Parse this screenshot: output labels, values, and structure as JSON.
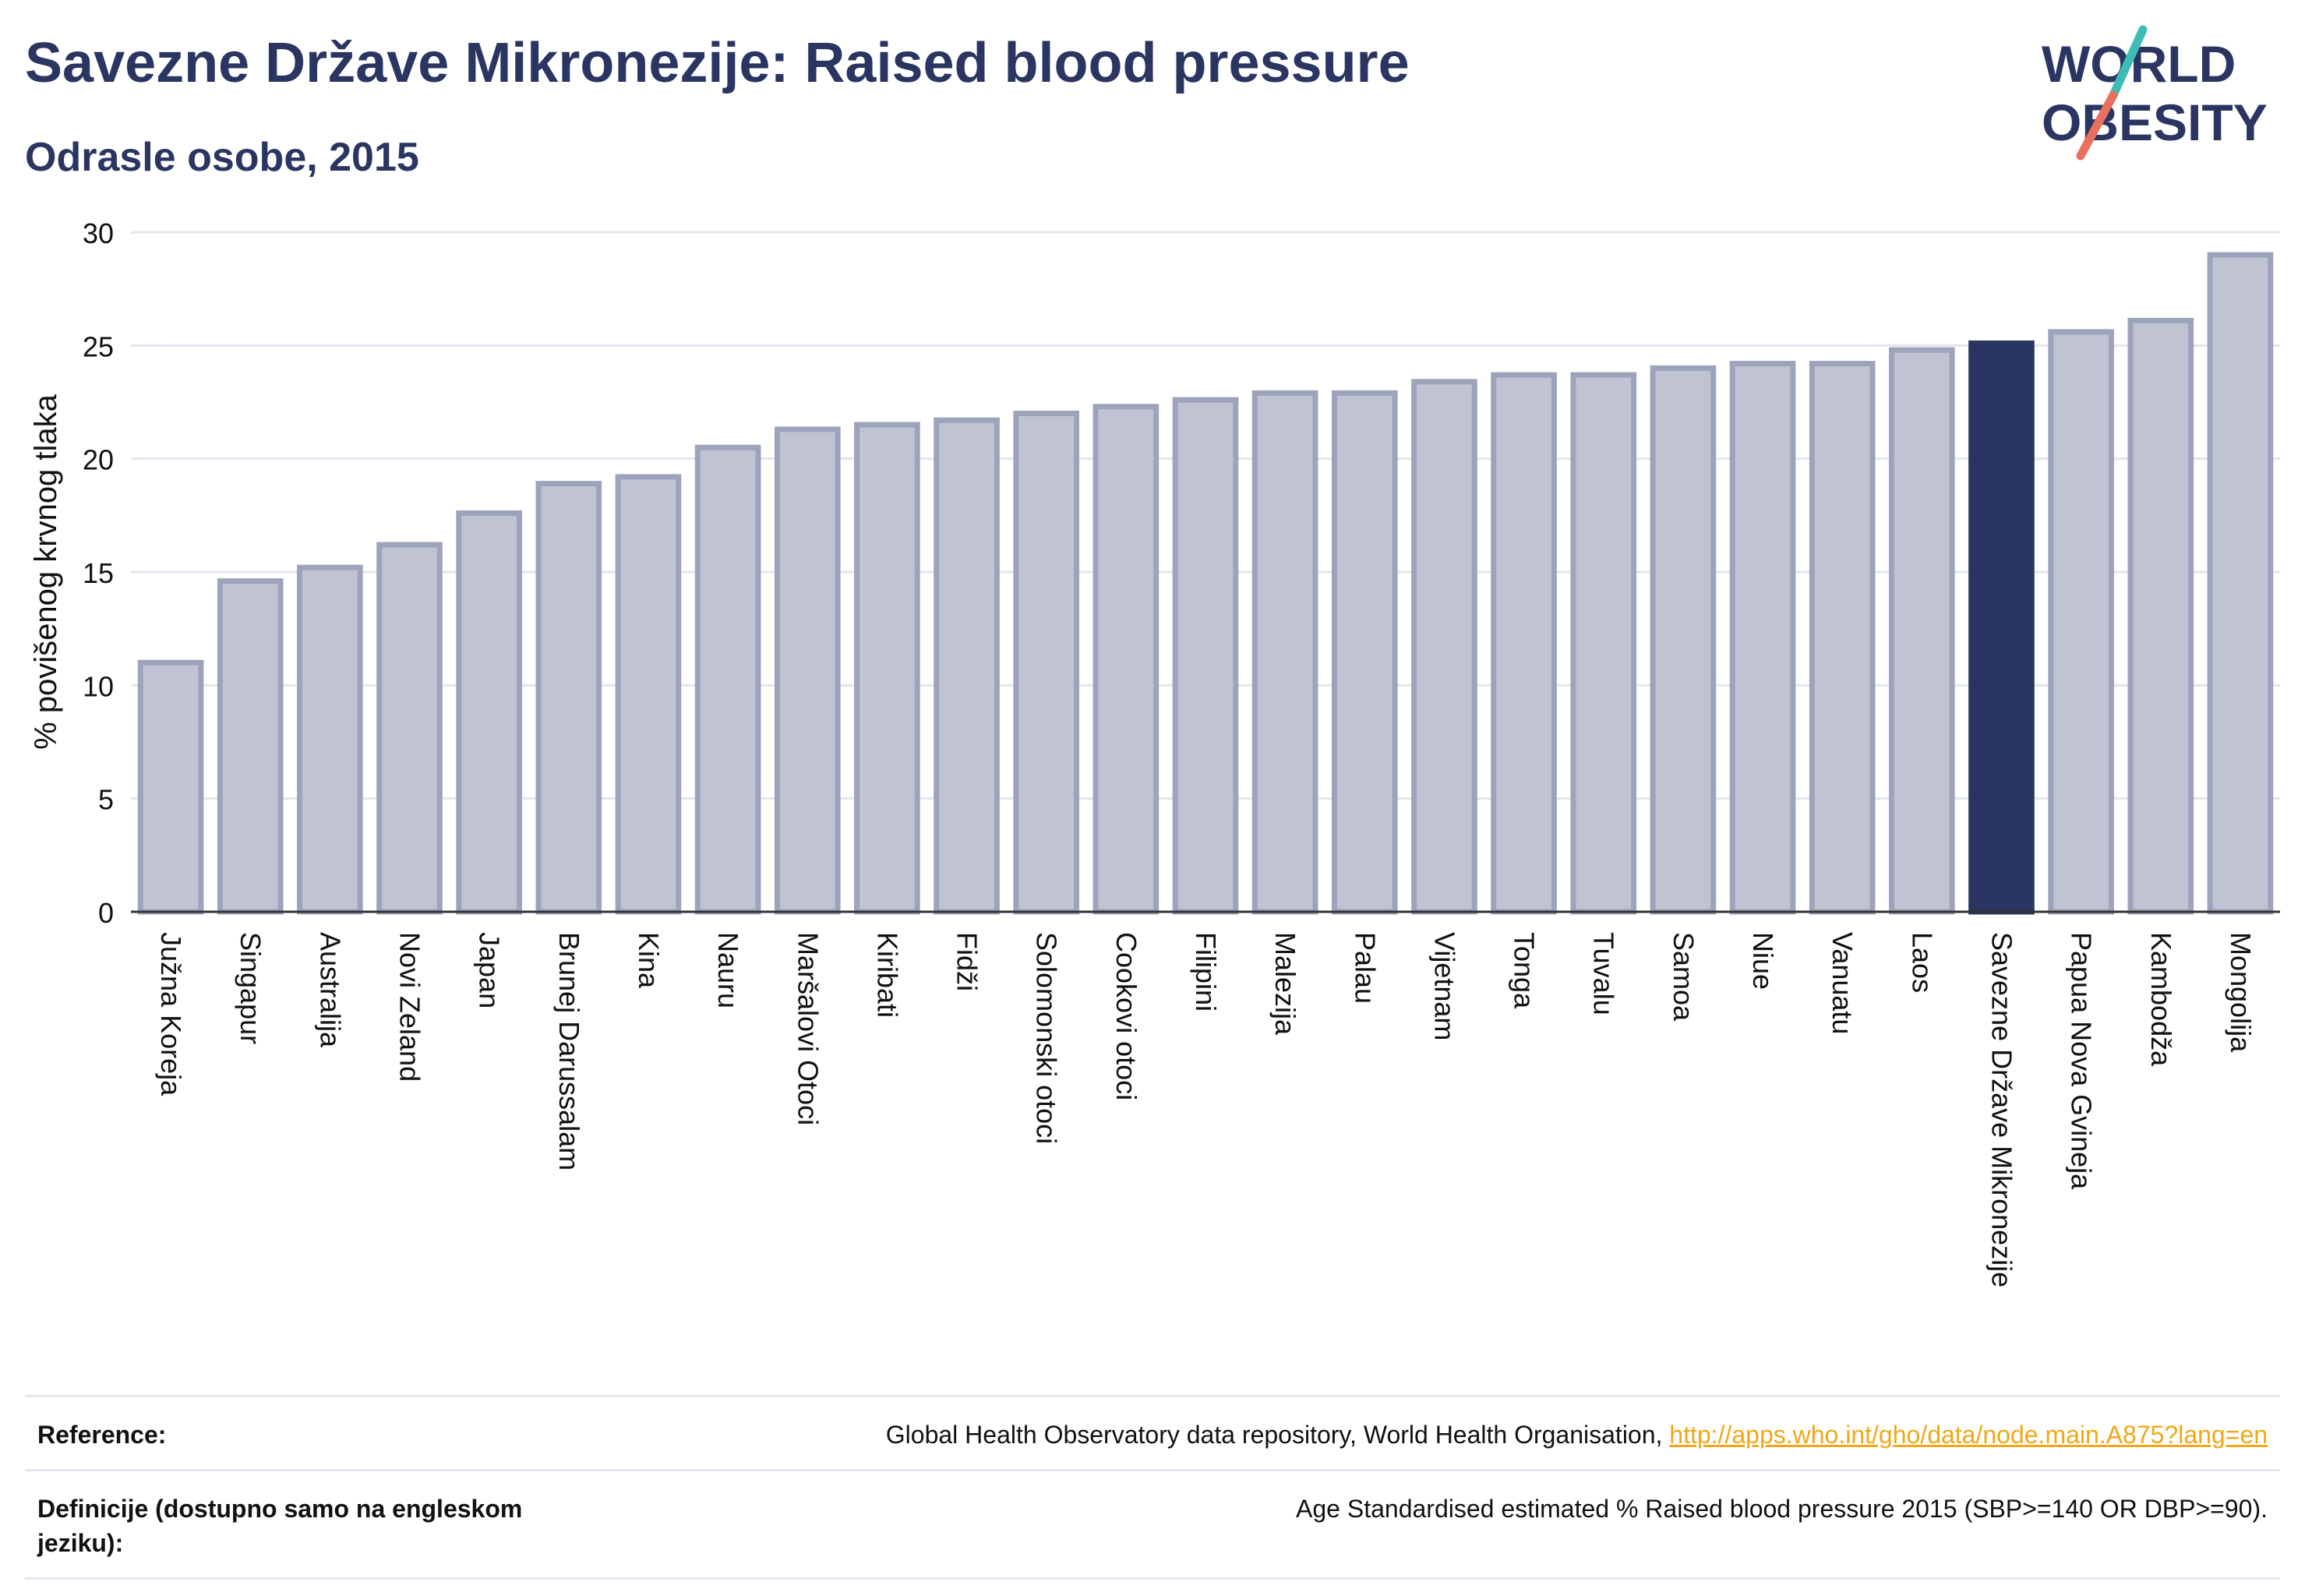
{
  "header": {
    "title": "Savezne Države Mikronezije: Raised blood pressure",
    "subtitle": "Odrasle osobe, 2015"
  },
  "logo": {
    "line1": "WORLD",
    "line2": "OBESITY"
  },
  "colors": {
    "bar": "#c0c4d2",
    "bar_border": "#9da3bb",
    "highlight": "#2a3561",
    "grid": "#e4e6ee",
    "text": "#2a3561",
    "link": "#f0a818"
  },
  "chart_data": {
    "type": "bar",
    "ylabel": "% povišenog krvnog tlaka",
    "ylim": [
      0,
      30
    ],
    "yticks": [
      0,
      5,
      10,
      15,
      20,
      25,
      30
    ],
    "grid": true,
    "highlight": "Savezne Države Mikronezije",
    "categories": [
      "Južna Koreja",
      "Singapur",
      "Australija",
      "Novi Zeland",
      "Japan",
      "Brunej Darussalam",
      "Kina",
      "Nauru",
      "Maršalovi Otoci",
      "Kiribati",
      "Fidži",
      "Solomonski otoci",
      "Cookovi otoci",
      "Filipini",
      "Malezija",
      "Palau",
      "Vijetnam",
      "Tonga",
      "Tuvalu",
      "Samoa",
      "Niue",
      "Vanuatu",
      "Laos",
      "Savezne Države Mikronezije",
      "Papua Nova Gvineja",
      "Kambodža",
      "Mongolija"
    ],
    "values": [
      11.0,
      14.6,
      15.2,
      16.2,
      17.6,
      18.9,
      19.2,
      20.5,
      21.3,
      21.5,
      21.7,
      22.0,
      22.3,
      22.6,
      22.9,
      22.9,
      23.4,
      23.7,
      23.7,
      24.0,
      24.2,
      24.2,
      24.8,
      25.1,
      25.6,
      26.1,
      29.0
    ]
  },
  "reference": {
    "label": "Reference:",
    "text": "Global Health Observatory data repository, World Health Organisation, ",
    "link": "http://apps.who.int/gho/data/node.main.A875?lang=en"
  },
  "definition": {
    "label": "Definicije (dostupno samo na engleskom jeziku):",
    "text": "Age Standardised estimated % Raised blood pressure 2015 (SBP>=140 OR DBP>=90)."
  }
}
